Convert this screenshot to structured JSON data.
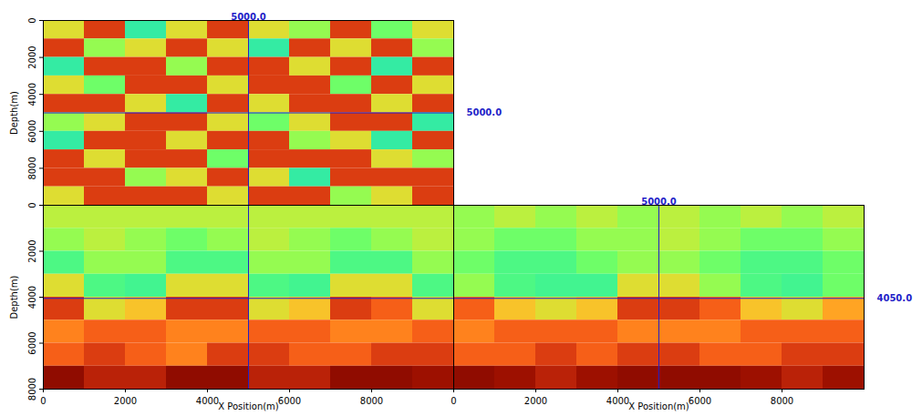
{
  "chart_data": [
    {
      "type": "heatmap",
      "xlim": [
        0,
        10000
      ],
      "ylim": [
        0,
        10000
      ],
      "yticks": [
        0,
        2000,
        4000,
        6000,
        8000
      ],
      "ylabel": "Depth(m)",
      "tick_labels": "y",
      "cell_range": [
        0,
        1
      ],
      "cells": [
        [
          0.6,
          0.85,
          0.35,
          0.6,
          0.85,
          0.6,
          0.5,
          0.85,
          0.45,
          0.6
        ],
        [
          0.85,
          0.5,
          0.6,
          0.85,
          0.6,
          0.35,
          0.85,
          0.6,
          0.85,
          0.5
        ],
        [
          0.35,
          0.85,
          0.85,
          0.5,
          0.85,
          0.85,
          0.6,
          0.85,
          0.35,
          0.85
        ],
        [
          0.6,
          0.45,
          0.85,
          0.85,
          0.6,
          0.85,
          0.85,
          0.45,
          0.85,
          0.6
        ],
        [
          0.85,
          0.85,
          0.6,
          0.35,
          0.85,
          0.6,
          0.85,
          0.85,
          0.6,
          0.85
        ],
        [
          0.5,
          0.6,
          0.85,
          0.85,
          0.6,
          0.45,
          0.6,
          0.85,
          0.85,
          0.35
        ],
        [
          0.35,
          0.85,
          0.85,
          0.6,
          0.85,
          0.85,
          0.5,
          0.6,
          0.35,
          0.85
        ],
        [
          0.85,
          0.6,
          0.85,
          0.85,
          0.45,
          0.85,
          0.85,
          0.85,
          0.6,
          0.5
        ],
        [
          0.85,
          0.85,
          0.5,
          0.6,
          0.85,
          0.6,
          0.35,
          0.85,
          0.85,
          0.85
        ],
        [
          0.6,
          0.85,
          0.85,
          0.85,
          0.6,
          0.85,
          0.85,
          0.5,
          0.6,
          0.85
        ]
      ],
      "crosshair": {
        "x": {
          "value": 5000,
          "label": "5000.0"
        },
        "y": {
          "value": 5000,
          "label": "5000.0"
        }
      }
    },
    {
      "type": "heatmap",
      "xlim": [
        0,
        10000
      ],
      "ylim": [
        0,
        8000
      ],
      "xticks": [
        0,
        2000,
        4000,
        6000,
        8000
      ],
      "yticks": [
        0,
        2000,
        4000,
        6000,
        8000
      ],
      "xlabel": "X Position(m)",
      "ylabel": "Depth(m)",
      "cell_range": [
        0,
        1
      ],
      "cells": [
        [
          0.55,
          0.55,
          0.55,
          0.55,
          0.55,
          0.55,
          0.55,
          0.55,
          0.55,
          0.55
        ],
        [
          0.5,
          0.55,
          0.5,
          0.45,
          0.5,
          0.55,
          0.5,
          0.45,
          0.5,
          0.55
        ],
        [
          0.4,
          0.5,
          0.5,
          0.4,
          0.4,
          0.5,
          0.5,
          0.4,
          0.4,
          0.5
        ],
        [
          0.6,
          0.4,
          0.38,
          0.6,
          0.6,
          0.4,
          0.38,
          0.6,
          0.6,
          0.4
        ],
        [
          0.85,
          0.6,
          0.65,
          0.85,
          0.85,
          0.6,
          0.65,
          0.85,
          0.8,
          0.6
        ],
        [
          0.75,
          0.8,
          0.8,
          0.75,
          0.75,
          0.8,
          0.8,
          0.75,
          0.75,
          0.8
        ],
        [
          0.8,
          0.85,
          0.8,
          0.75,
          0.85,
          0.85,
          0.8,
          0.8,
          0.85,
          0.85
        ],
        [
          1,
          0.9,
          0.9,
          1,
          1,
          0.9,
          0.9,
          1,
          1,
          0.95
        ]
      ],
      "crosshair": {
        "x": 5000,
        "y": 4050
      }
    },
    {
      "type": "heatmap",
      "xlim": [
        0,
        10000
      ],
      "ylim": [
        0,
        8000
      ],
      "xticks": [
        0,
        2000,
        4000,
        6000,
        8000
      ],
      "xlabel": "X Position(m)",
      "tick_labels": "x",
      "cell_range": [
        0,
        1
      ],
      "cells": [
        [
          0.5,
          0.55,
          0.5,
          0.55,
          0.5,
          0.55,
          0.5,
          0.55,
          0.5,
          0.55
        ],
        [
          0.5,
          0.45,
          0.45,
          0.5,
          0.5,
          0.55,
          0.5,
          0.45,
          0.45,
          0.5
        ],
        [
          0.45,
          0.4,
          0.4,
          0.45,
          0.5,
          0.5,
          0.45,
          0.4,
          0.4,
          0.45
        ],
        [
          0.5,
          0.4,
          0.38,
          0.38,
          0.6,
          0.6,
          0.5,
          0.4,
          0.38,
          0.45
        ],
        [
          0.8,
          0.65,
          0.6,
          0.65,
          0.85,
          0.85,
          0.8,
          0.65,
          0.6,
          0.7
        ],
        [
          0.75,
          0.8,
          0.8,
          0.8,
          0.75,
          0.75,
          0.75,
          0.8,
          0.8,
          0.8
        ],
        [
          0.8,
          0.8,
          0.85,
          0.8,
          0.85,
          0.85,
          0.8,
          0.8,
          0.85,
          0.85
        ],
        [
          1,
          0.95,
          0.9,
          0.95,
          1,
          1,
          1,
          0.95,
          0.9,
          0.95
        ]
      ],
      "crosshair": {
        "x": {
          "value": 5000,
          "label": "5000.0"
        },
        "y": {
          "value": 4050,
          "label": "4050.0"
        }
      }
    }
  ]
}
